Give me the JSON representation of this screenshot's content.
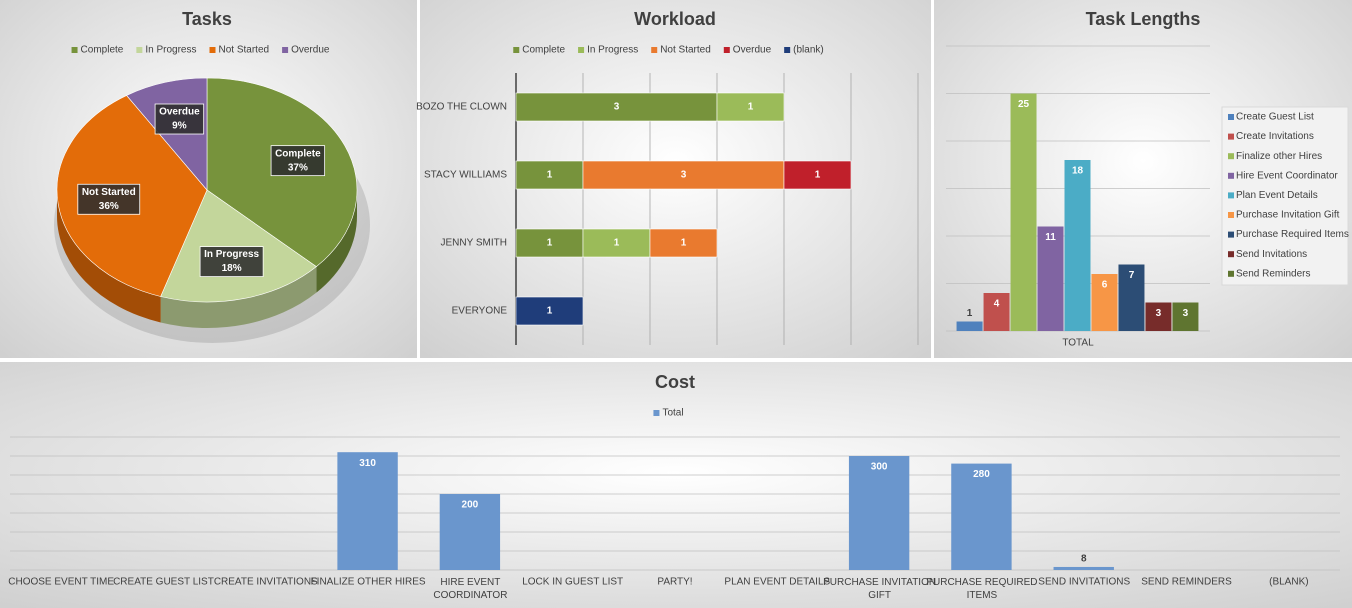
{
  "chart_data": [
    {
      "type": "pie",
      "title": "Tasks",
      "categories": [
        "Complete",
        "In Progress",
        "Not Started",
        "Overdue"
      ],
      "values": [
        37,
        18,
        36,
        9
      ],
      "value_labels": [
        "37%",
        "18%",
        "36%",
        "9%"
      ],
      "colors": [
        "#77933c",
        "#c3d69b",
        "#e36c09",
        "#8064a2"
      ],
      "legend": "top"
    },
    {
      "type": "bar",
      "orientation": "horizontal",
      "stacked": true,
      "title": "Workload",
      "categories": [
        "BOZO THE CLOWN",
        "STACY WILLIAMS",
        "JENNY SMITH",
        "EVERYONE"
      ],
      "series": [
        {
          "name": "Complete",
          "color": "#77933c",
          "values": [
            3,
            1,
            1,
            null
          ]
        },
        {
          "name": "In Progress",
          "color": "#9bbb59",
          "values": [
            1,
            null,
            1,
            null
          ]
        },
        {
          "name": "Not Started",
          "color": "#e97a2f",
          "values": [
            null,
            3,
            1,
            null
          ]
        },
        {
          "name": "Overdue",
          "color": "#c0202b",
          "values": [
            null,
            1,
            null,
            null
          ]
        },
        {
          "name": "(blank)",
          "color": "#1f3d7a",
          "values": [
            null,
            null,
            null,
            1
          ]
        }
      ],
      "xlim": [
        0,
        6
      ],
      "xticks": [
        0,
        1,
        2,
        3,
        4,
        5,
        6
      ],
      "grid": true,
      "legend": "top"
    },
    {
      "type": "bar",
      "orientation": "vertical",
      "stacked": false,
      "title": "Task Lengths",
      "categories": [
        "TOTAL"
      ],
      "series": [
        {
          "name": "Create Guest List",
          "color": "#4f81bd",
          "values": [
            1
          ]
        },
        {
          "name": "Create Invitations",
          "color": "#c0504d",
          "values": [
            4
          ]
        },
        {
          "name": "Finalize other Hires",
          "color": "#9bbb59",
          "values": [
            25
          ]
        },
        {
          "name": "Hire Event Coordinator",
          "color": "#8064a2",
          "values": [
            11
          ]
        },
        {
          "name": "Plan Event Details",
          "color": "#4bacc6",
          "values": [
            18
          ]
        },
        {
          "name": "Purchase Invitation Gift",
          "color": "#f79646",
          "values": [
            6
          ]
        },
        {
          "name": "Purchase Required Items",
          "color": "#2c4d75",
          "values": [
            7
          ]
        },
        {
          "name": "Send Invitations",
          "color": "#772c2a",
          "values": [
            3
          ]
        },
        {
          "name": "Send Reminders",
          "color": "#5f7530",
          "values": [
            3
          ]
        }
      ],
      "ylim": [
        0,
        30
      ],
      "yticks": [
        0,
        5,
        10,
        15,
        20,
        25,
        30
      ],
      "grid": true,
      "legend": "right"
    },
    {
      "type": "bar",
      "orientation": "vertical",
      "stacked": false,
      "title": "Cost",
      "categories": [
        "CHOOSE EVENT TIME",
        "CREATE GUEST LIST",
        "CREATE INVITATIONS",
        "FINALIZE OTHER HIRES",
        "HIRE EVENT COORDINATOR",
        "LOCK IN GUEST LIST",
        "PARTY!",
        "PLAN EVENT DETAILS",
        "PURCHASE INVITATION GIFT",
        "PURCHASE REQUIRED ITEMS",
        "SEND INVITATIONS",
        "SEND REMINDERS",
        "(BLANK)"
      ],
      "series": [
        {
          "name": "Total",
          "color": "#6a96cd",
          "values": [
            null,
            null,
            null,
            310,
            200,
            null,
            null,
            null,
            300,
            280,
            8,
            null,
            null
          ]
        }
      ],
      "ylim": [
        0,
        350
      ],
      "yticks": [
        0,
        50,
        100,
        150,
        200,
        250,
        300,
        350
      ],
      "grid": true,
      "legend": "top"
    }
  ]
}
